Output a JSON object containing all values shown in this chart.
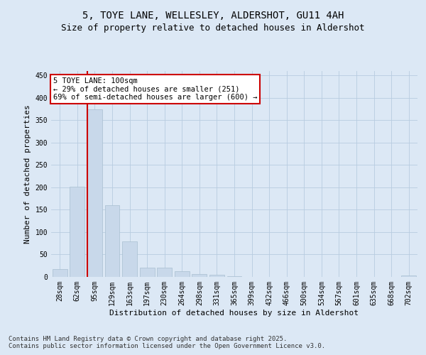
{
  "title_line1": "5, TOYE LANE, WELLESLEY, ALDERSHOT, GU11 4AH",
  "title_line2": "Size of property relative to detached houses in Aldershot",
  "xlabel": "Distribution of detached houses by size in Aldershot",
  "ylabel": "Number of detached properties",
  "bar_color": "#c8d8ea",
  "bar_edgecolor": "#a8bfd0",
  "vline_color": "#cc0000",
  "vline_x_index": 2,
  "annotation_text": "5 TOYE LANE: 100sqm\n← 29% of detached houses are smaller (251)\n69% of semi-detached houses are larger (600) →",
  "annotation_box_facecolor": "#ffffff",
  "annotation_box_edgecolor": "#cc0000",
  "grid_color": "#b8cce0",
  "background_color": "#dce8f5",
  "categories": [
    "28sqm",
    "62sqm",
    "95sqm",
    "129sqm",
    "163sqm",
    "197sqm",
    "230sqm",
    "264sqm",
    "298sqm",
    "331sqm",
    "365sqm",
    "399sqm",
    "432sqm",
    "466sqm",
    "500sqm",
    "534sqm",
    "567sqm",
    "601sqm",
    "635sqm",
    "668sqm",
    "702sqm"
  ],
  "values": [
    18,
    202,
    375,
    160,
    80,
    20,
    20,
    12,
    7,
    4,
    1,
    0,
    0,
    0,
    0,
    0,
    0,
    0,
    0,
    0,
    3
  ],
  "ylim": [
    0,
    460
  ],
  "yticks": [
    0,
    50,
    100,
    150,
    200,
    250,
    300,
    350,
    400,
    450
  ],
  "footer_line1": "Contains HM Land Registry data © Crown copyright and database right 2025.",
  "footer_line2": "Contains public sector information licensed under the Open Government Licence v3.0.",
  "title_fontsize": 10,
  "subtitle_fontsize": 9,
  "axis_label_fontsize": 8,
  "tick_fontsize": 7,
  "footer_fontsize": 6.5,
  "annot_fontsize": 7.5
}
